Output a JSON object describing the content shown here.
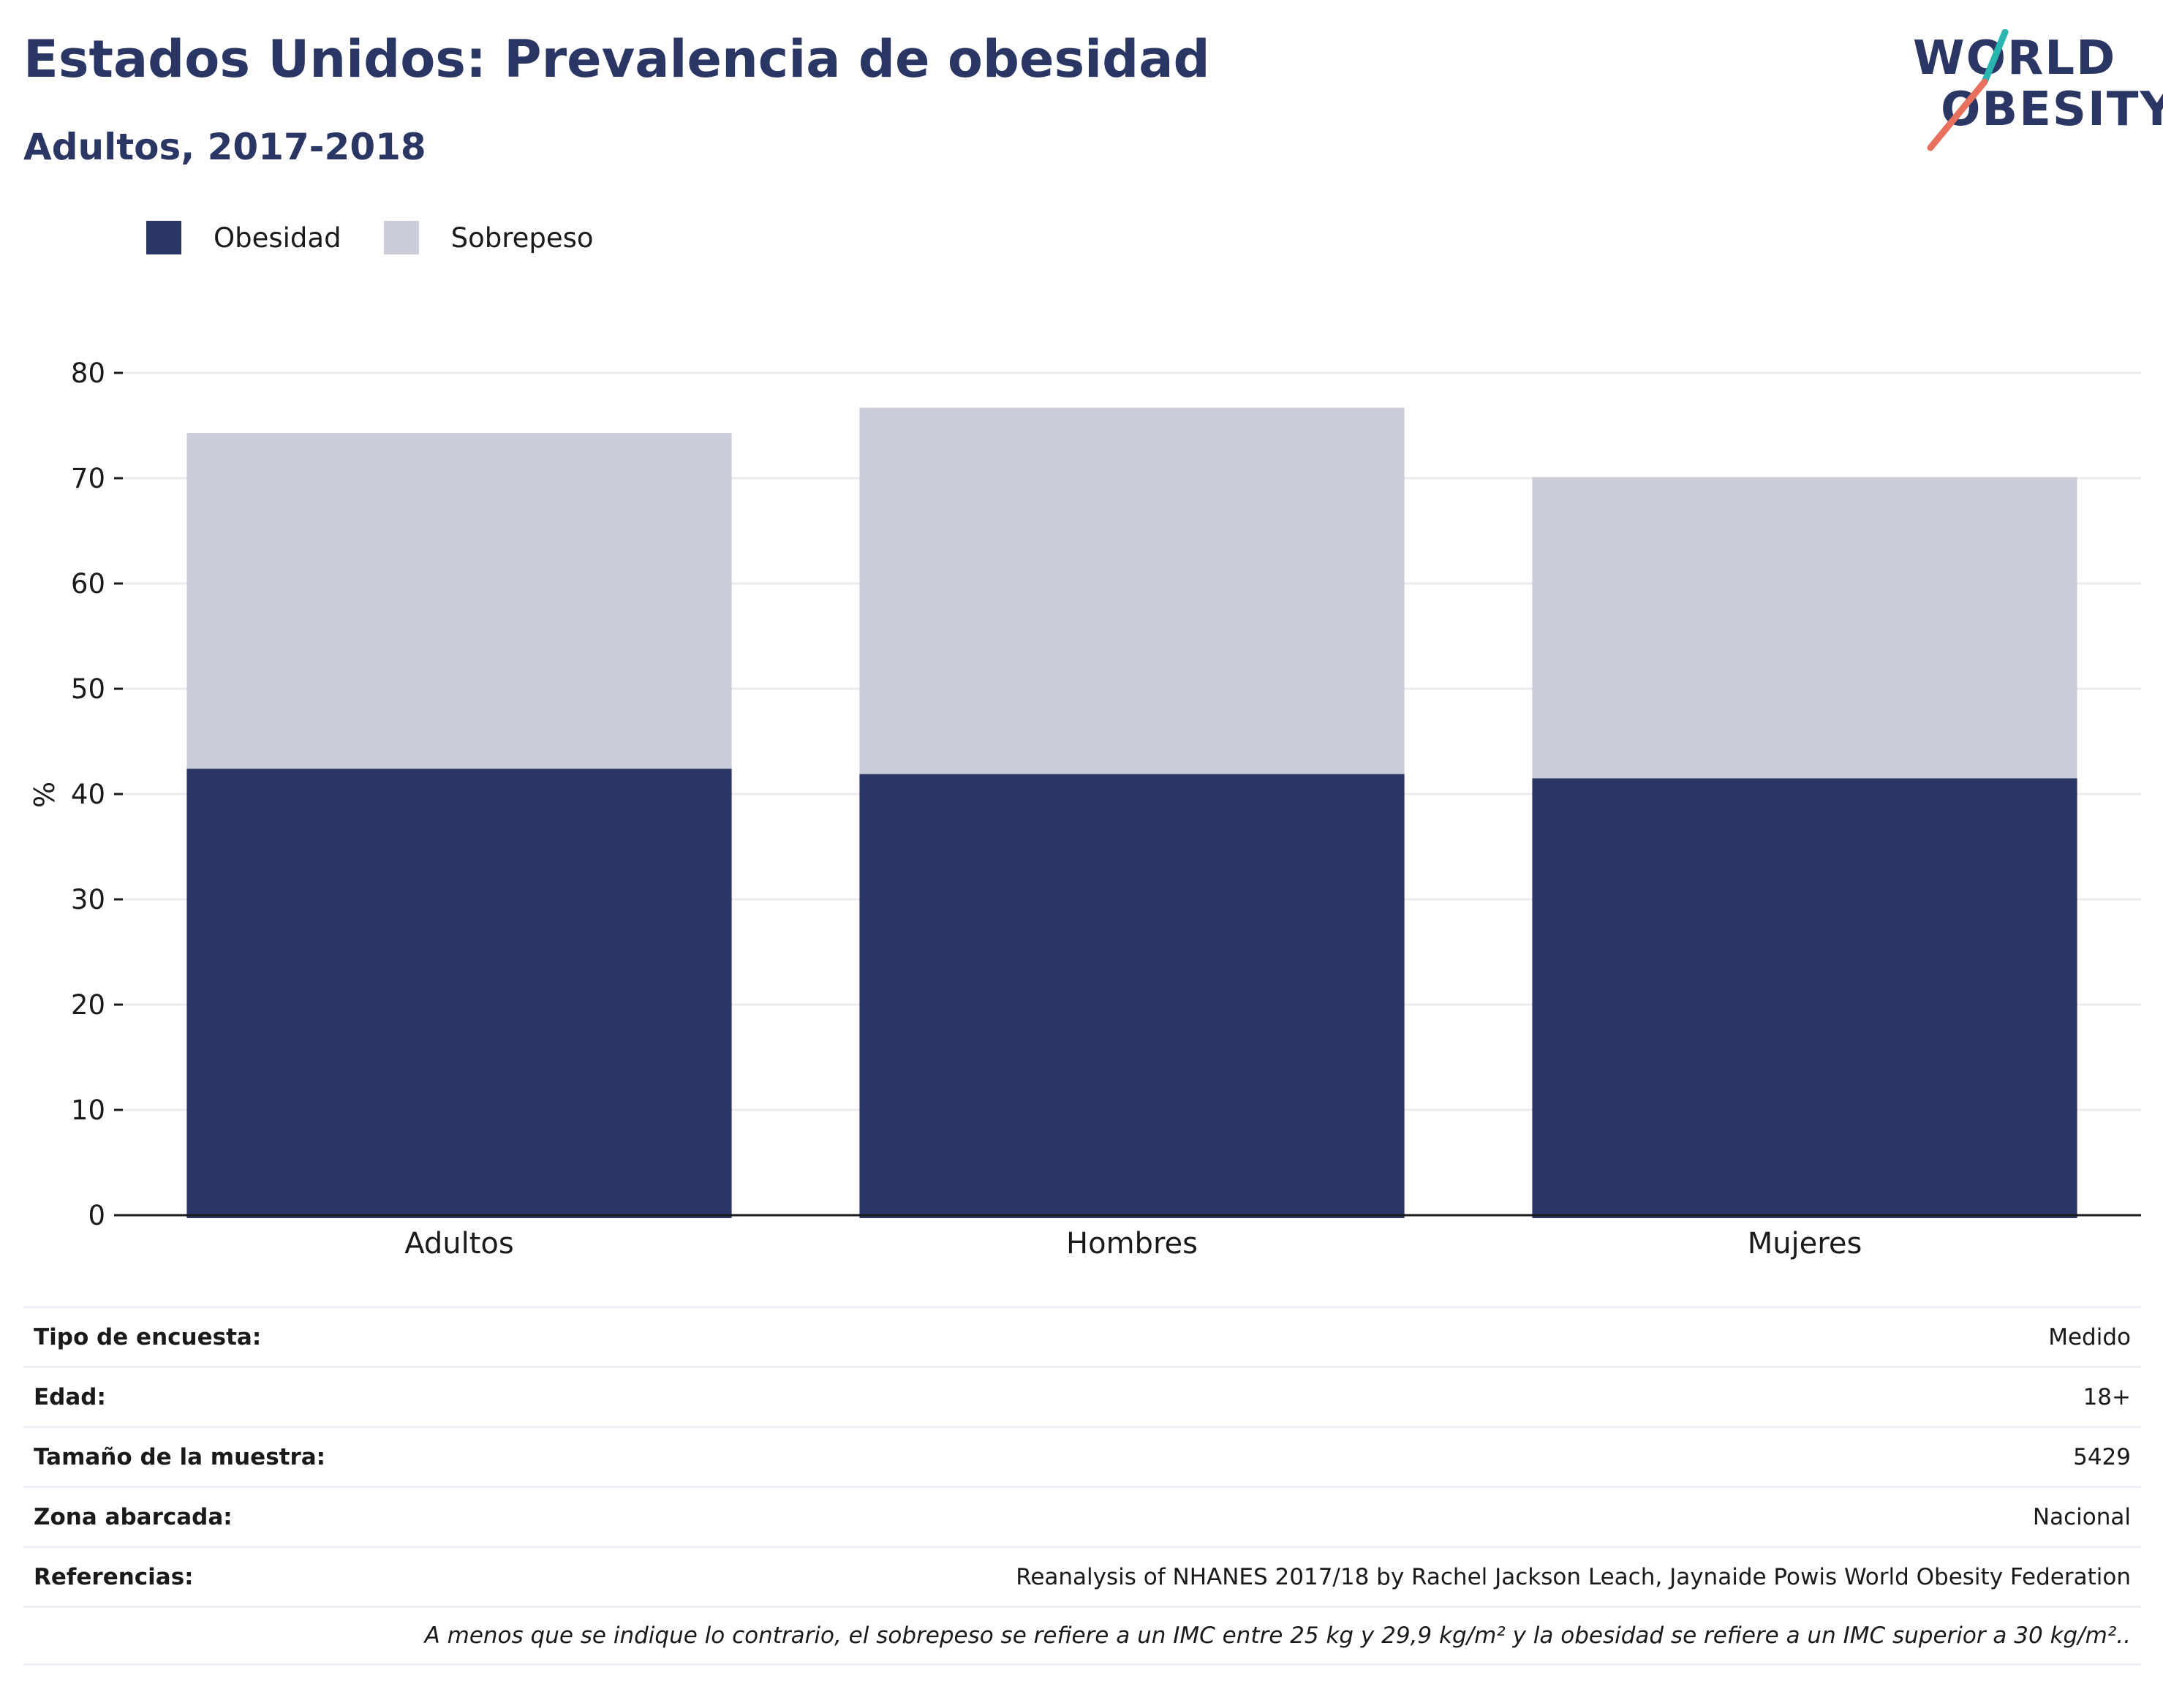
{
  "header": {
    "title": "Estados Unidos: Prevalencia de obesidad",
    "subtitle": "Adultos, 2017-2018"
  },
  "logo": {
    "line1": "WORLD",
    "line2": "OBESITY",
    "accent_colors": [
      "#2bb5b0",
      "#e8705f"
    ]
  },
  "chart_data": {
    "type": "bar",
    "stacked": true,
    "categories": [
      "Adultos",
      "Hombres",
      "Mujeres"
    ],
    "series": [
      {
        "name": "Obesidad",
        "values": [
          42.4,
          41.9,
          41.5
        ],
        "color": "#2a3663"
      },
      {
        "name": "Sobrepeso",
        "values": [
          31.9,
          34.8,
          28.6
        ],
        "color": "#cacdd8"
      }
    ],
    "ylabel": "%",
    "xlabel": "",
    "ylim": [
      0,
      80
    ],
    "yticks": [
      0,
      10,
      20,
      30,
      40,
      50,
      60,
      70,
      80
    ],
    "grid": true,
    "legend_position": "top-left"
  },
  "info_table": {
    "rows": [
      {
        "label": "Tipo de encuesta:",
        "value": "Medido"
      },
      {
        "label": "Edad:",
        "value": "18+"
      },
      {
        "label": "Tamaño de la muestra:",
        "value": "5429"
      },
      {
        "label": "Zona abarcada:",
        "value": "Nacional"
      },
      {
        "label": "Referencias:",
        "value": "Reanalysis of NHANES 2017/18 by Rachel Jackson Leach, Jaynaide Powis World Obesity Federation"
      }
    ],
    "note": "A menos que se indique lo contrario, el sobrepeso se refiere a un IMC entre 25 kg y 29,9 kg/m² y la obesidad se refiere a un IMC superior a 30 kg/m².."
  }
}
